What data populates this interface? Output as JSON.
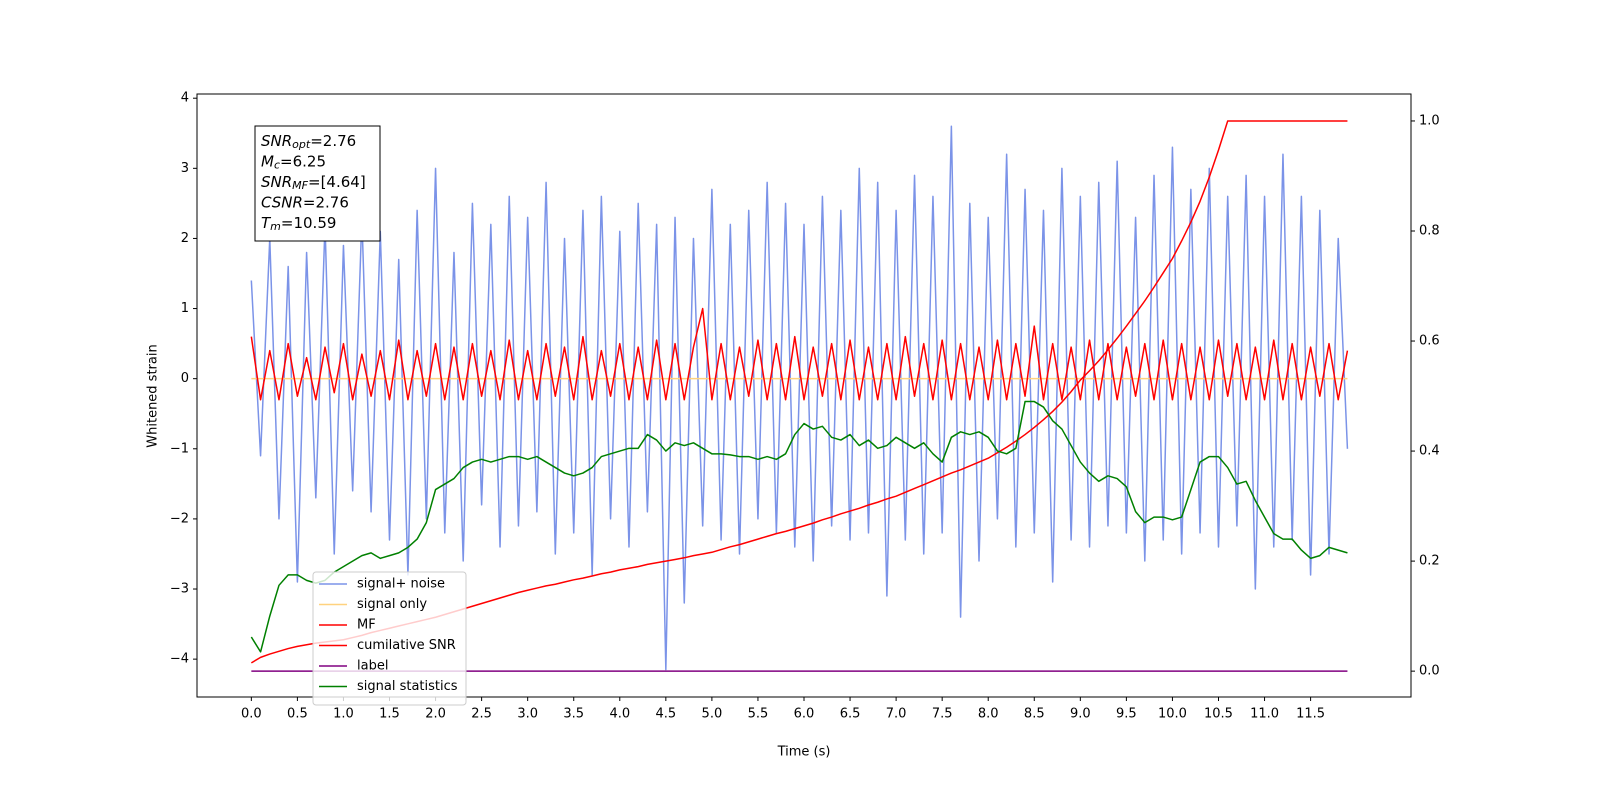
{
  "chart_data": {
    "type": "line",
    "xlabel": "Time (s)",
    "ylabel": "Whitened strain",
    "xlim": [
      -0.59,
      12.59
    ],
    "ylim": [
      -4.54,
      4.06
    ],
    "y2lim": [
      -0.047,
      1.049
    ],
    "xticks": [
      {
        "value": 0,
        "label": "0.0"
      },
      0.5,
      {
        "value": 1,
        "label": "1.0"
      },
      1.5,
      {
        "value": 2,
        "label": "2.0"
      },
      2.5,
      {
        "value": 3,
        "label": "3.0"
      },
      3.5,
      {
        "value": 4,
        "label": "4.0"
      },
      4.5,
      {
        "value": 5,
        "label": "5.0"
      },
      5.5,
      {
        "value": 6,
        "label": "6.0"
      },
      6.5,
      {
        "value": 7,
        "label": "7.0"
      },
      7.5,
      {
        "value": 8,
        "label": "8.0"
      },
      8.5,
      {
        "value": 9,
        "label": "9.0"
      },
      9.5,
      {
        "value": 10,
        "label": "10.0"
      },
      10.5,
      {
        "value": 11,
        "label": "11.0"
      },
      11.5
    ],
    "yticks": [
      {
        "value": -4,
        "label": "−4"
      },
      {
        "value": -3,
        "label": "−3"
      },
      {
        "value": -2,
        "label": "−2"
      },
      {
        "value": -1,
        "label": "−1"
      },
      0,
      1,
      2,
      3,
      4
    ],
    "y2ticks": [
      {
        "value": 0,
        "label": "0.0"
      },
      0.2,
      0.4,
      0.6,
      0.8,
      {
        "value": 1,
        "label": "1.0"
      }
    ],
    "legend": "lower left",
    "annotations": [
      {
        "symbol": "SNR",
        "sub": "opt",
        "text": "=2.76"
      },
      {
        "symbol": "M",
        "sub": "c",
        "text": "=6.25"
      },
      {
        "symbol": "SNR",
        "sub": "MF",
        "text": "=[4.64]"
      },
      {
        "symbol": "CSNR",
        "text": "=2.76"
      },
      {
        "symbol": "T",
        "sub": "m",
        "text": "=10.59"
      }
    ],
    "x": [
      0,
      0.1,
      0.2,
      0.3,
      0.4,
      0.5,
      0.6,
      0.7,
      0.8,
      0.9,
      1,
      1.1,
      1.2,
      1.3,
      1.4,
      1.5,
      1.6,
      1.7,
      1.8,
      1.9,
      2,
      2.1,
      2.2,
      2.3,
      2.4,
      2.5,
      2.6,
      2.7,
      2.8,
      2.9,
      3,
      3.1,
      3.2,
      3.3,
      3.4,
      3.5,
      3.6,
      3.7,
      3.8,
      3.9,
      4,
      4.1,
      4.2,
      4.3,
      4.4,
      4.5,
      4.6,
      4.7,
      4.8,
      4.9,
      5,
      5.1,
      5.2,
      5.3,
      5.4,
      5.5,
      5.6,
      5.7,
      5.8,
      5.9,
      6,
      6.1,
      6.2,
      6.3,
      6.4,
      6.5,
      6.6,
      6.7,
      6.8,
      6.9,
      7,
      7.1,
      7.2,
      7.3,
      7.4,
      7.5,
      7.6,
      7.7,
      7.8,
      7.9,
      8,
      8.1,
      8.2,
      8.3,
      8.4,
      8.5,
      8.6,
      8.7,
      8.8,
      8.9,
      9,
      9.1,
      9.2,
      9.3,
      9.4,
      9.5,
      9.6,
      9.7,
      9.8,
      9.9,
      10,
      10.1,
      10.2,
      10.3,
      10.4,
      10.5,
      10.6,
      10.7,
      10.8,
      10.9,
      11,
      11.1,
      11.2,
      11.3,
      11.4,
      11.5,
      11.6,
      11.7,
      11.8,
      11.9
    ],
    "series": [
      {
        "name": "signal+ noise",
        "color": "#7b93e8",
        "values": [
          1.4,
          -1.1,
          2.0,
          -2.0,
          1.6,
          -2.9,
          1.8,
          -1.7,
          2.2,
          -2.5,
          1.9,
          -1.6,
          2.3,
          -1.9,
          2.1,
          -2.3,
          1.7,
          -2.8,
          2.4,
          -2.0,
          3.0,
          -2.2,
          1.8,
          -2.6,
          2.5,
          -1.8,
          2.2,
          -2.4,
          2.6,
          -2.1,
          2.3,
          -1.9,
          2.8,
          -2.5,
          2.0,
          -2.2,
          2.4,
          -2.8,
          2.6,
          -2.0,
          2.1,
          -2.4,
          2.5,
          -1.9,
          2.2,
          -4.15,
          2.3,
          -3.2,
          2.0,
          -2.1,
          2.7,
          -2.3,
          2.2,
          -2.5,
          2.4,
          -2.0,
          2.8,
          -2.2,
          2.5,
          -2.4,
          2.2,
          -2.6,
          2.6,
          -2.1,
          2.4,
          -2.3,
          3.0,
          -2.2,
          2.8,
          -3.1,
          2.4,
          -2.3,
          2.9,
          -2.5,
          2.6,
          -2.2,
          3.6,
          -3.4,
          2.5,
          -2.6,
          2.3,
          -2.0,
          3.2,
          -2.4,
          2.7,
          -2.2,
          2.4,
          -2.9,
          3.0,
          -2.3,
          2.6,
          -2.4,
          2.8,
          -2.1,
          3.1,
          -2.2,
          2.3,
          -2.6,
          2.9,
          -2.3,
          3.3,
          -2.5,
          2.7,
          -2.2,
          3.0,
          -2.4,
          2.6,
          -2.1,
          2.9,
          -3.0,
          2.6,
          -2.4,
          3.2,
          -2.3,
          2.6,
          -2.8,
          2.4,
          -2.5,
          2.0,
          -1.0
        ]
      },
      {
        "name": "signal only",
        "color": "#ffd27f",
        "values": [
          0,
          0,
          0,
          0,
          0,
          0,
          0,
          0,
          0,
          0,
          0,
          0,
          0,
          0,
          0,
          0,
          0,
          0,
          0,
          0,
          0,
          0,
          0,
          0,
          0,
          0,
          0,
          0,
          0,
          0,
          0,
          0,
          0,
          0,
          0,
          0,
          0,
          0,
          0,
          0,
          0,
          0,
          0,
          0,
          0,
          0,
          0,
          0,
          0,
          0,
          0,
          0,
          0,
          0,
          0,
          0,
          0,
          0,
          0,
          0,
          0,
          0,
          0,
          0,
          0,
          0,
          0,
          0,
          0,
          0,
          0,
          0,
          0,
          0,
          0,
          0,
          0,
          0,
          0,
          0,
          0,
          0,
          0,
          0,
          0,
          0,
          0,
          0,
          0,
          0,
          0,
          0,
          0,
          0,
          0,
          0,
          0,
          0,
          0,
          0,
          0,
          0,
          0,
          0,
          0,
          0,
          0,
          0,
          0,
          0,
          0,
          0,
          0,
          0,
          0,
          0,
          0,
          0,
          0,
          0
        ]
      },
      {
        "name": "MF",
        "color": "#ff0000",
        "values": [
          0.6,
          -0.3,
          0.4,
          -0.3,
          0.5,
          -0.25,
          0.3,
          -0.3,
          0.45,
          -0.2,
          0.5,
          -0.3,
          0.35,
          -0.25,
          0.4,
          -0.3,
          0.55,
          -0.3,
          0.4,
          -0.25,
          0.5,
          -0.3,
          0.45,
          -0.3,
          0.5,
          -0.25,
          0.4,
          -0.3,
          0.55,
          -0.3,
          0.4,
          -0.3,
          0.5,
          -0.25,
          0.45,
          -0.3,
          0.6,
          -0.3,
          0.4,
          -0.25,
          0.5,
          -0.3,
          0.45,
          -0.3,
          0.55,
          -0.3,
          0.5,
          -0.3,
          0.45,
          1.0,
          -0.3,
          0.5,
          -0.3,
          0.45,
          -0.25,
          0.55,
          -0.3,
          0.5,
          -0.3,
          0.6,
          -0.3,
          0.45,
          -0.25,
          0.5,
          -0.3,
          0.55,
          -0.3,
          0.45,
          -0.3,
          0.5,
          -0.3,
          0.6,
          -0.25,
          0.5,
          -0.3,
          0.55,
          -0.3,
          0.5,
          -0.3,
          0.45,
          -0.3,
          0.55,
          -0.3,
          0.5,
          -0.25,
          0.75,
          -0.3,
          0.5,
          -0.3,
          0.45,
          -0.3,
          0.55,
          -0.3,
          0.5,
          -0.3,
          0.45,
          -0.25,
          0.5,
          -0.3,
          0.55,
          -0.3,
          0.5,
          -0.3,
          0.45,
          -0.3,
          0.55,
          -0.25,
          0.5,
          -0.3,
          0.45,
          -0.3,
          0.55,
          -0.3,
          0.5,
          -0.3,
          0.45,
          -0.25,
          0.5,
          -0.3,
          0.4
        ]
      },
      {
        "name": "cumilative SNR",
        "color": "#ff0000",
        "axis": "y2",
        "values": [
          0.015,
          0.025,
          0.031,
          0.036,
          0.041,
          0.045,
          0.048,
          0.051,
          0.053,
          0.055,
          0.057,
          0.061,
          0.065,
          0.07,
          0.074,
          0.078,
          0.082,
          0.086,
          0.09,
          0.094,
          0.098,
          0.103,
          0.108,
          0.113,
          0.118,
          0.123,
          0.128,
          0.133,
          0.138,
          0.143,
          0.147,
          0.151,
          0.155,
          0.158,
          0.162,
          0.166,
          0.169,
          0.173,
          0.177,
          0.18,
          0.184,
          0.187,
          0.19,
          0.194,
          0.197,
          0.2,
          0.203,
          0.206,
          0.21,
          0.213,
          0.216,
          0.221,
          0.226,
          0.23,
          0.235,
          0.24,
          0.245,
          0.25,
          0.254,
          0.259,
          0.264,
          0.269,
          0.275,
          0.28,
          0.286,
          0.291,
          0.296,
          0.302,
          0.307,
          0.313,
          0.318,
          0.325,
          0.332,
          0.339,
          0.346,
          0.353,
          0.36,
          0.366,
          0.373,
          0.38,
          0.387,
          0.397,
          0.407,
          0.418,
          0.43,
          0.443,
          0.457,
          0.472,
          0.489,
          0.508,
          0.529,
          0.546,
          0.564,
          0.584,
          0.605,
          0.627,
          0.65,
          0.673,
          0.698,
          0.724,
          0.75,
          0.782,
          0.816,
          0.854,
          0.898,
          0.947,
          1.0,
          1.0,
          1.0,
          1.0,
          1.0,
          1.0,
          1.0,
          1.0,
          1.0,
          1.0,
          1.0,
          1.0,
          1.0,
          1.0
        ]
      },
      {
        "name": "label",
        "color": "#800080",
        "axis": "y2",
        "values": [
          0,
          0,
          0,
          0,
          0,
          0,
          0,
          0,
          0,
          0,
          0,
          0,
          0,
          0,
          0,
          0,
          0,
          0,
          0,
          0,
          0,
          0,
          0,
          0,
          0,
          0,
          0,
          0,
          0,
          0,
          0,
          0,
          0,
          0,
          0,
          0,
          0,
          0,
          0,
          0,
          0,
          0,
          0,
          0,
          0,
          0,
          0,
          0,
          0,
          0,
          0,
          0,
          0,
          0,
          0,
          0,
          0,
          0,
          0,
          0,
          0,
          0,
          0,
          0,
          0,
          0,
          0,
          0,
          0,
          0,
          0,
          0,
          0,
          0,
          0,
          0,
          0,
          0,
          0,
          0,
          0,
          0,
          0,
          0,
          0,
          0,
          0,
          0,
          0,
          0,
          0,
          0,
          0,
          0,
          0,
          0,
          0,
          0,
          0,
          0,
          0,
          0,
          0,
          0,
          0,
          0,
          0,
          0,
          0,
          0,
          0,
          0,
          0,
          0,
          0,
          0,
          0,
          0,
          0,
          0
        ]
      },
      {
        "name": "signal statistics",
        "color": "#008000",
        "axis": "y2",
        "values": [
          0.062,
          0.035,
          0.1,
          0.156,
          0.175,
          0.175,
          0.165,
          0.16,
          0.165,
          0.18,
          0.19,
          0.2,
          0.21,
          0.215,
          0.205,
          0.21,
          0.215,
          0.225,
          0.24,
          0.27,
          0.33,
          0.34,
          0.35,
          0.37,
          0.38,
          0.385,
          0.38,
          0.385,
          0.39,
          0.39,
          0.385,
          0.39,
          0.38,
          0.37,
          0.36,
          0.355,
          0.36,
          0.37,
          0.39,
          0.395,
          0.4,
          0.405,
          0.405,
          0.43,
          0.42,
          0.4,
          0.415,
          0.41,
          0.415,
          0.405,
          0.395,
          0.395,
          0.393,
          0.39,
          0.39,
          0.385,
          0.39,
          0.385,
          0.395,
          0.43,
          0.45,
          0.44,
          0.445,
          0.425,
          0.42,
          0.43,
          0.41,
          0.42,
          0.405,
          0.41,
          0.425,
          0.415,
          0.405,
          0.415,
          0.395,
          0.38,
          0.425,
          0.435,
          0.43,
          0.435,
          0.425,
          0.4,
          0.395,
          0.405,
          0.49,
          0.49,
          0.48,
          0.455,
          0.44,
          0.41,
          0.38,
          0.36,
          0.345,
          0.355,
          0.35,
          0.335,
          0.29,
          0.27,
          0.28,
          0.28,
          0.275,
          0.28,
          0.33,
          0.38,
          0.39,
          0.39,
          0.37,
          0.34,
          0.345,
          0.31,
          0.28,
          0.25,
          0.24,
          0.24,
          0.22,
          0.205,
          0.21,
          0.225,
          0.22,
          0.215
        ]
      }
    ]
  }
}
